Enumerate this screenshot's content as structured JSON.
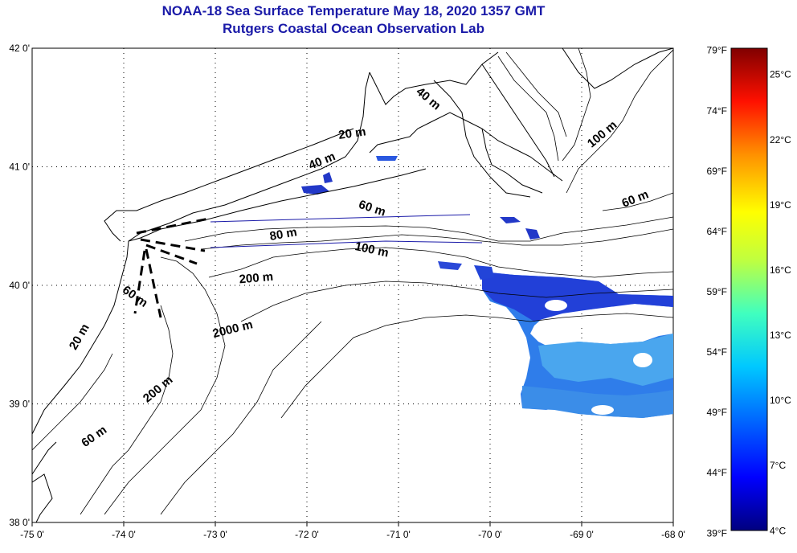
{
  "header": {
    "title": "NOAA-18 Sea Surface Temperature May 18, 2020 1357 GMT",
    "subtitle": "Rutgers Coastal Ocean Observation Lab"
  },
  "map": {
    "lon_ticks": [
      "-75 0'",
      "-74 0'",
      "-73 0'",
      "-72 0'",
      "-71 0'",
      "-70 0'",
      "-69 0'",
      "-68 0'"
    ],
    "lat_ticks": [
      "42 0'",
      "41 0'",
      "40 0'",
      "39 0'",
      "38 0'"
    ],
    "lon_range": [
      -75,
      -68
    ],
    "lat_range": [
      38,
      42
    ],
    "grid": true,
    "depth_labels": [
      {
        "text": "40 m",
        "lon": -70.7,
        "lat": 41.55,
        "angle": 40
      },
      {
        "text": "100 m",
        "lon": -68.75,
        "lat": 41.25,
        "angle": -40
      },
      {
        "text": "20 m",
        "lon": -71.5,
        "lat": 41.25,
        "angle": -8
      },
      {
        "text": "40 m",
        "lon": -71.82,
        "lat": 41.02,
        "angle": -22
      },
      {
        "text": "60 m",
        "lon": -68.4,
        "lat": 40.7,
        "angle": -22
      },
      {
        "text": "60 m",
        "lon": -71.3,
        "lat": 40.62,
        "angle": 18
      },
      {
        "text": "80 m",
        "lon": -72.25,
        "lat": 40.4,
        "angle": -10
      },
      {
        "text": "100 m",
        "lon": -71.3,
        "lat": 40.27,
        "angle": 12
      },
      {
        "text": "200 m",
        "lon": -72.55,
        "lat": 40.03,
        "angle": -5
      },
      {
        "text": "60 m",
        "lon": -73.9,
        "lat": 39.88,
        "angle": 35
      },
      {
        "text": "2000 m",
        "lon": -72.8,
        "lat": 39.6,
        "angle": -14
      },
      {
        "text": "20 m",
        "lon": -74.45,
        "lat": 39.55,
        "angle": -60
      },
      {
        "text": "200 m",
        "lon": -73.6,
        "lat": 39.1,
        "angle": -40
      },
      {
        "text": "60 m",
        "lon": -74.3,
        "lat": 38.7,
        "angle": -35
      }
    ]
  },
  "colorbar": {
    "fahrenheit_labels": [
      "79°F",
      "74°F",
      "69°F",
      "64°F",
      "59°F",
      "54°F",
      "49°F",
      "44°F",
      "39°F"
    ],
    "celsius_labels": [
      "25°C",
      "22°C",
      "19°C",
      "16°C",
      "13°C",
      "10°C",
      "7°C",
      "4°C"
    ],
    "range_c": [
      3.9,
      26.1
    ],
    "colors": [
      "#00007f",
      "#0000ff",
      "#007fff",
      "#00ffff",
      "#7fff7f",
      "#ffff00",
      "#ff7f00",
      "#ff0000",
      "#7f0000"
    ]
  }
}
